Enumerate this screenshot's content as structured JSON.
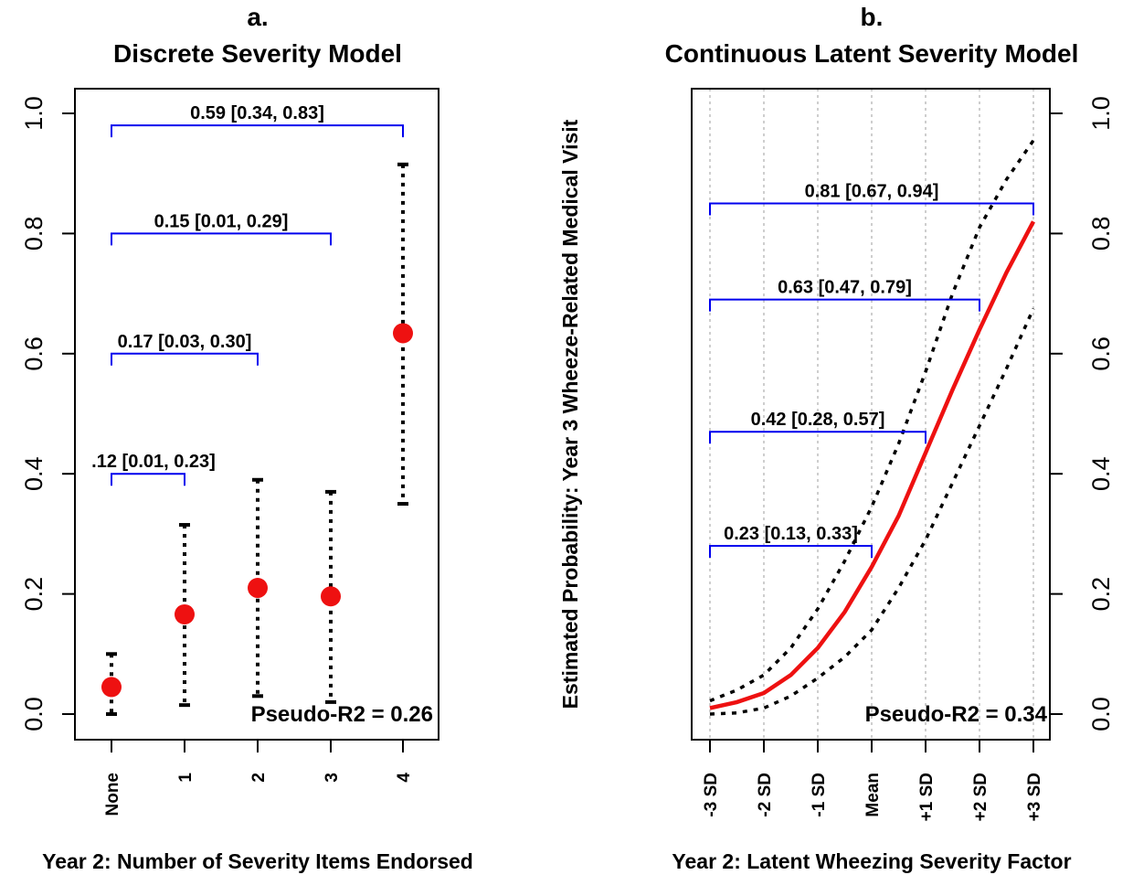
{
  "chart_data": [
    {
      "type": "scatter",
      "panel": "a.",
      "title": "Discrete Severity Model",
      "xlabel": "Year 2: Number of Severity Items Endorsed",
      "categories": [
        "None",
        "1",
        "2",
        "3",
        "4"
      ],
      "points": [
        {
          "x": "None",
          "estimate": 0.045,
          "lower": 0.0,
          "upper": 0.1
        },
        {
          "x": "1",
          "estimate": 0.166,
          "lower": 0.015,
          "upper": 0.315
        },
        {
          "x": "2",
          "estimate": 0.21,
          "lower": 0.03,
          "upper": 0.39
        },
        {
          "x": "3",
          "estimate": 0.196,
          "lower": 0.02,
          "upper": 0.37
        },
        {
          "x": "4",
          "estimate": 0.634,
          "lower": 0.35,
          "upper": 0.915
        }
      ],
      "brackets": [
        {
          "from": "None",
          "to": "1",
          "y": 0.4,
          "label": ".12 [0.01, 0.23]"
        },
        {
          "from": "None",
          "to": "2",
          "y": 0.6,
          "label": "0.17 [0.03, 0.30]"
        },
        {
          "from": "None",
          "to": "3",
          "y": 0.8,
          "label": "0.15 [0.01, 0.29]"
        },
        {
          "from": "None",
          "to": "4",
          "y": 0.98,
          "label": "0.59 [0.34, 0.83]"
        }
      ],
      "annotation": "Pseudo-R2 = 0.26",
      "ylim": [
        0.0,
        1.0
      ],
      "yticks": [
        "0.0",
        "0.2",
        "0.4",
        "0.6",
        "0.8",
        "1.0"
      ],
      "ytick_values": [
        0.0,
        0.2,
        0.4,
        0.6,
        0.8,
        1.0
      ],
      "yaxis_side": "left",
      "grid": false,
      "colors": {
        "points": "#ee1111",
        "brackets": "#0000ee",
        "intervals": "#000000"
      }
    },
    {
      "type": "line",
      "panel": "b.",
      "title": "Continuous Latent Severity Model",
      "xlabel": "Year 2: Latent Wheezing Severity Factor",
      "categories": [
        "-3 SD",
        "-2 SD",
        "-1 SD",
        "Mean",
        "+1 SD",
        "+2 SD",
        "+3 SD"
      ],
      "x": [
        -3,
        -2.5,
        -2,
        -1.5,
        -1,
        -0.5,
        0,
        0.5,
        1,
        1.5,
        2,
        2.5,
        3
      ],
      "series": [
        {
          "role": "estimate",
          "values": [
            0.01,
            0.02,
            0.035,
            0.065,
            0.11,
            0.17,
            0.245,
            0.33,
            0.435,
            0.54,
            0.64,
            0.735,
            0.82
          ]
        },
        {
          "role": "upper",
          "values": [
            0.022,
            0.04,
            0.065,
            0.11,
            0.175,
            0.255,
            0.345,
            0.45,
            0.57,
            0.7,
            0.81,
            0.89,
            0.955
          ]
        },
        {
          "role": "lower",
          "values": [
            0.0,
            0.002,
            0.01,
            0.03,
            0.06,
            0.095,
            0.14,
            0.21,
            0.29,
            0.385,
            0.48,
            0.575,
            0.675
          ]
        }
      ],
      "brackets": [
        {
          "from": "-3 SD",
          "to": "Mean",
          "y": 0.28,
          "label": "0.23 [0.13, 0.33]"
        },
        {
          "from": "-3 SD",
          "to": "+1 SD",
          "y": 0.47,
          "label": "0.42 [0.28, 0.57]"
        },
        {
          "from": "-3 SD",
          "to": "+2 SD",
          "y": 0.69,
          "label": "0.63 [0.47, 0.79]"
        },
        {
          "from": "-3 SD",
          "to": "+3 SD",
          "y": 0.85,
          "label": "0.81 [0.67, 0.94]"
        }
      ],
      "annotation": "Pseudo-R2 = 0.34",
      "ylim": [
        0.0,
        1.0
      ],
      "yticks": [
        "0.0",
        "0.2",
        "0.4",
        "0.6",
        "0.8",
        "1.0"
      ],
      "ytick_values": [
        0.0,
        0.2,
        0.4,
        0.6,
        0.8,
        1.0
      ],
      "yaxis_side": "right",
      "grid": true,
      "colors": {
        "estimate": "#ee1111",
        "interval": "#000000",
        "brackets": "#0000ee",
        "grid": "#bdbdbd"
      }
    }
  ],
  "shared_ylabel": "Estimated Probability: Year 3 Wheeze-Related Medical Visit"
}
